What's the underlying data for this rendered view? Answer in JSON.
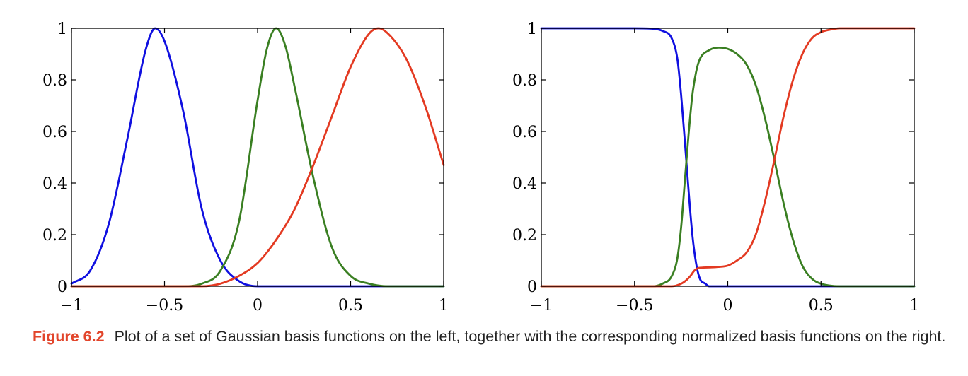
{
  "caption": {
    "label": "Figure 6.2",
    "text": "Plot of a set of Gaussian basis functions on the left, together with the corresponding normalized basis functions on the right."
  },
  "chart_data": [
    {
      "type": "line",
      "title": "",
      "xlabel": "",
      "ylabel": "",
      "xlim": [
        -1,
        1
      ],
      "ylim": [
        0,
        1
      ],
      "xticks": [
        -1,
        -0.5,
        0,
        0.5,
        1
      ],
      "xtick_labels": [
        "−1",
        "−0.5",
        "0",
        "0.5",
        "1"
      ],
      "yticks": [
        0,
        0.2,
        0.4,
        0.6,
        0.8,
        1
      ],
      "ytick_labels": [
        "0",
        "0.2",
        "0.4",
        "0.6",
        "0.8",
        "1"
      ],
      "grid": false,
      "series": [
        {
          "color": "#1010e0",
          "x": [
            -1,
            -0.9,
            -0.8,
            -0.7,
            -0.6,
            -0.55,
            -0.5,
            -0.4,
            -0.3,
            -0.2,
            -0.1,
            0,
            0.2,
            0.4,
            0.6,
            0.8,
            1
          ],
          "y": [
            0.01,
            0.06,
            0.24,
            0.57,
            0.92,
            1.0,
            0.95,
            0.68,
            0.3,
            0.1,
            0.02,
            0.0,
            0,
            0,
            0,
            0,
            0
          ]
        },
        {
          "color": "#3a7f22",
          "x": [
            -1,
            -0.4,
            -0.3,
            -0.2,
            -0.1,
            0,
            0.05,
            0.1,
            0.15,
            0.2,
            0.3,
            0.4,
            0.5,
            0.6,
            0.7,
            1
          ],
          "y": [
            0,
            0.0,
            0.01,
            0.06,
            0.25,
            0.72,
            0.92,
            1.0,
            0.93,
            0.77,
            0.42,
            0.15,
            0.04,
            0.01,
            0.0,
            0
          ]
        },
        {
          "color": "#e33a22",
          "x": [
            -1,
            -0.4,
            -0.3,
            -0.2,
            -0.1,
            0,
            0.1,
            0.2,
            0.3,
            0.4,
            0.5,
            0.6,
            0.65,
            0.7,
            0.8,
            0.9,
            1
          ],
          "y": [
            0,
            0.0,
            0.0,
            0.01,
            0.04,
            0.09,
            0.18,
            0.3,
            0.47,
            0.66,
            0.85,
            0.98,
            1.0,
            0.98,
            0.88,
            0.7,
            0.47
          ]
        }
      ]
    },
    {
      "type": "line",
      "title": "",
      "xlabel": "",
      "ylabel": "",
      "xlim": [
        -1,
        1
      ],
      "ylim": [
        0,
        1
      ],
      "xticks": [
        -1,
        -0.5,
        0,
        0.5,
        1
      ],
      "xtick_labels": [
        "−1",
        "−0.5",
        "0",
        "0.5",
        "1"
      ],
      "yticks": [
        0,
        0.2,
        0.4,
        0.6,
        0.8,
        1
      ],
      "ytick_labels": [
        "0",
        "0.2",
        "0.4",
        "0.6",
        "0.8",
        "1"
      ],
      "grid": false,
      "series": [
        {
          "color": "#1010e0",
          "x": [
            -1,
            -0.5,
            -0.4,
            -0.35,
            -0.3,
            -0.27,
            -0.25,
            -0.23,
            -0.21,
            -0.19,
            -0.17,
            -0.15,
            -0.12,
            -0.1,
            0,
            1
          ],
          "y": [
            1.0,
            1.0,
            0.998,
            0.99,
            0.96,
            0.88,
            0.74,
            0.56,
            0.37,
            0.2,
            0.09,
            0.03,
            0.01,
            0.0,
            0,
            0
          ]
        },
        {
          "color": "#3a7f22",
          "x": [
            -1,
            -0.4,
            -0.35,
            -0.3,
            -0.27,
            -0.25,
            -0.23,
            -0.21,
            -0.19,
            -0.17,
            -0.15,
            -0.1,
            -0.05,
            0,
            0.05,
            0.1,
            0.15,
            0.2,
            0.25,
            0.3,
            0.35,
            0.4,
            0.45,
            0.5,
            0.6,
            0.7,
            1
          ],
          "y": [
            0,
            0.0,
            0.01,
            0.04,
            0.11,
            0.23,
            0.41,
            0.59,
            0.74,
            0.83,
            0.88,
            0.915,
            0.925,
            0.92,
            0.9,
            0.86,
            0.78,
            0.65,
            0.49,
            0.32,
            0.18,
            0.08,
            0.03,
            0.01,
            0.0,
            0,
            0
          ]
        },
        {
          "color": "#e33a22",
          "x": [
            -1,
            -0.4,
            -0.3,
            -0.25,
            -0.22,
            -0.2,
            -0.18,
            -0.16,
            -0.14,
            -0.1,
            -0.05,
            0,
            0.05,
            0.1,
            0.15,
            0.2,
            0.25,
            0.3,
            0.35,
            0.4,
            0.45,
            0.5,
            0.55,
            0.6,
            0.7,
            0.8,
            1
          ],
          "y": [
            0,
            0.0,
            0.0,
            0.01,
            0.025,
            0.04,
            0.06,
            0.07,
            0.072,
            0.073,
            0.075,
            0.08,
            0.1,
            0.13,
            0.2,
            0.33,
            0.49,
            0.66,
            0.8,
            0.9,
            0.96,
            0.985,
            0.995,
            1.0,
            1.0,
            1.0,
            1.0
          ]
        }
      ]
    }
  ]
}
